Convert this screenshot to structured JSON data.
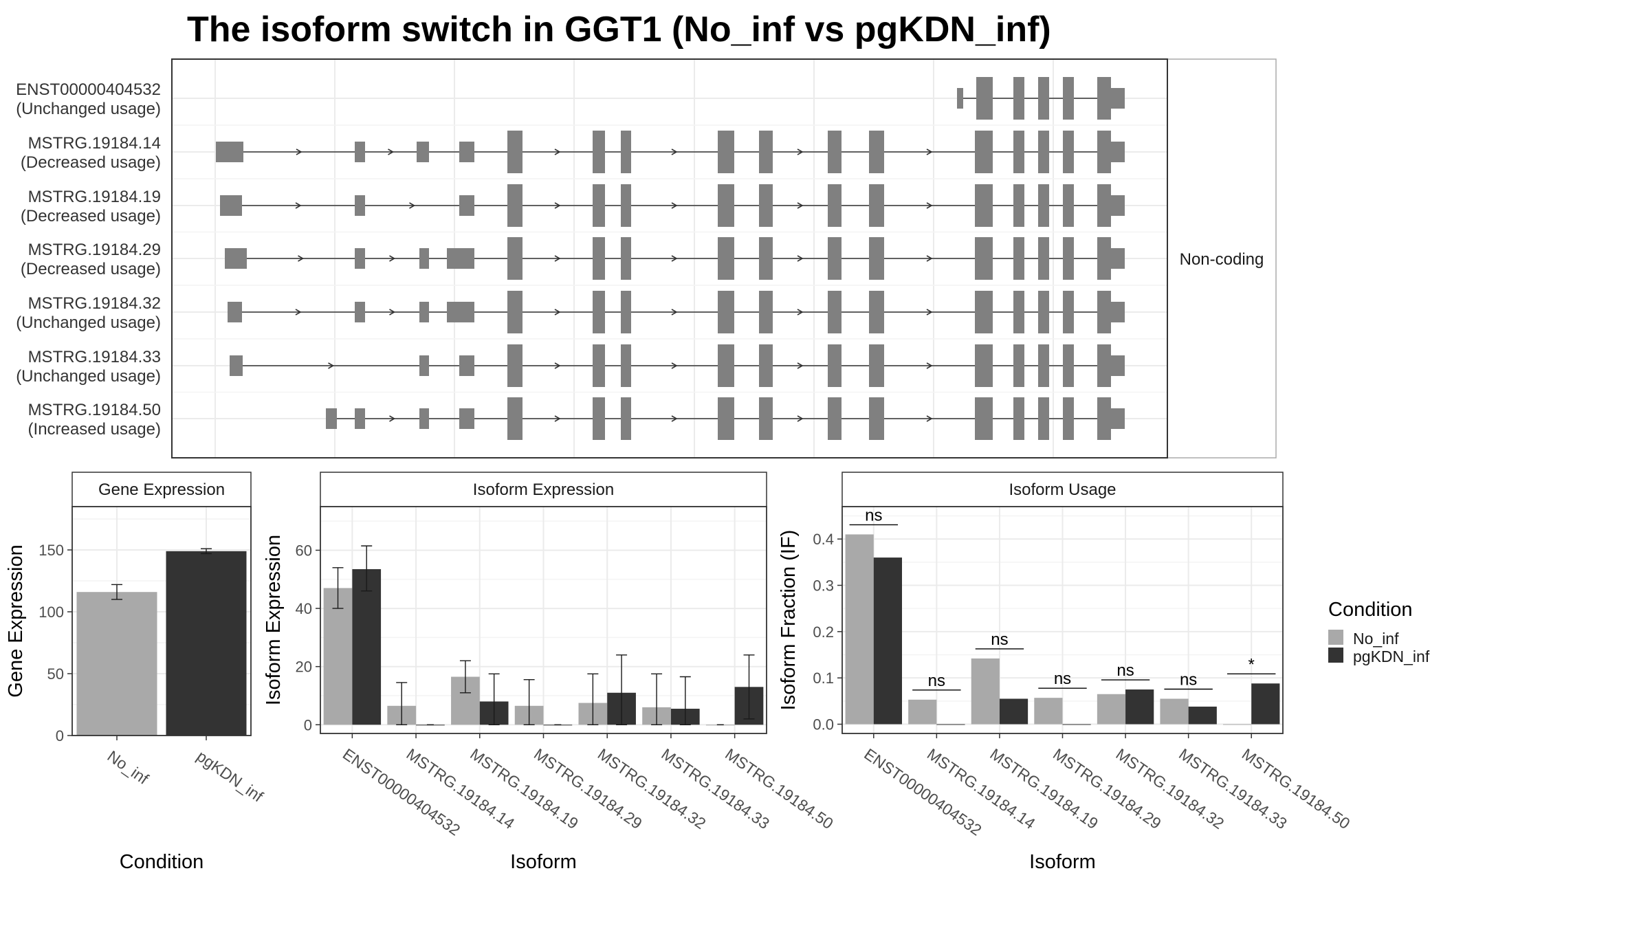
{
  "title": "The isoform switch in GGT1 (No_inf vs pgKDN_inf)",
  "colors": {
    "no_inf": "#a9a9a9",
    "pgkdn_inf": "#333333",
    "exon": "#808080"
  },
  "legend": {
    "title": "Condition",
    "items": [
      {
        "label": "No_inf",
        "color": "#a9a9a9"
      },
      {
        "label": "pgKDN_inf",
        "color": "#333333"
      }
    ]
  },
  "transcript_panel": {
    "strip_label": "Non-coding",
    "tracks": [
      {
        "name": "ENST00000404532",
        "usage": "(Unchanged usage)"
      },
      {
        "name": "MSTRG.19184.14",
        "usage": "(Decreased usage)"
      },
      {
        "name": "MSTRG.19184.19",
        "usage": "(Decreased usage)"
      },
      {
        "name": "MSTRG.19184.29",
        "usage": "(Decreased usage)"
      },
      {
        "name": "MSTRG.19184.32",
        "usage": "(Unchanged usage)"
      },
      {
        "name": "MSTRG.19184.33",
        "usage": "(Unchanged usage)"
      },
      {
        "name": "MSTRG.19184.50",
        "usage": "(Increased usage)"
      }
    ]
  },
  "chart_data": [
    {
      "type": "bar",
      "title": "Gene Expression",
      "xlabel": "Condition",
      "ylabel": "Gene Expression",
      "ylim": [
        0,
        185
      ],
      "yticks": [
        0,
        50,
        100,
        150
      ],
      "categories": [
        "No_inf",
        "pgKDN_inf"
      ],
      "values": [
        116,
        149
      ],
      "errors": [
        [
          110,
          122
        ],
        [
          147,
          151
        ]
      ],
      "colors": [
        "#a9a9a9",
        "#333333"
      ]
    },
    {
      "type": "bar",
      "title": "Isoform Expression",
      "xlabel": "Isoform",
      "ylabel": "Isoform Expression",
      "ylim": [
        -3,
        75
      ],
      "yticks": [
        0,
        20,
        40,
        60
      ],
      "categories": [
        "ENST00000404532",
        "MSTRG.19184.14",
        "MSTRG.19184.19",
        "MSTRG.19184.29",
        "MSTRG.19184.32",
        "MSTRG.19184.33",
        "MSTRG.19184.50"
      ],
      "series": [
        {
          "name": "No_inf",
          "values": [
            47,
            6.5,
            16.5,
            6.5,
            7.5,
            6,
            0
          ],
          "errors": [
            [
              40,
              54
            ],
            [
              0,
              14.5
            ],
            [
              11,
              22
            ],
            [
              0,
              15.5
            ],
            [
              0,
              17.5
            ],
            [
              0,
              17.5
            ],
            [
              0,
              0
            ]
          ]
        },
        {
          "name": "pgKDN_inf",
          "values": [
            53.5,
            0,
            8,
            0,
            11,
            5.5,
            13
          ],
          "errors": [
            [
              46,
              61.5
            ],
            [
              0,
              0
            ],
            [
              0,
              17.5
            ],
            [
              0,
              0
            ],
            [
              0,
              24
            ],
            [
              0,
              16.5
            ],
            [
              2,
              24
            ]
          ]
        }
      ]
    },
    {
      "type": "bar",
      "title": "Isoform Usage",
      "xlabel": "Isoform",
      "ylabel": "Isoform Fraction (IF)",
      "ylim": [
        -0.02,
        0.47
      ],
      "yticks": [
        0.0,
        0.1,
        0.2,
        0.3,
        0.4
      ],
      "ytick_labels": [
        "0.0",
        "0.1",
        "0.2",
        "0.3",
        "0.4"
      ],
      "categories": [
        "ENST00000404532",
        "MSTRG.19184.14",
        "MSTRG.19184.19",
        "MSTRG.19184.29",
        "MSTRG.19184.32",
        "MSTRG.19184.33",
        "MSTRG.19184.50"
      ],
      "series": [
        {
          "name": "No_inf",
          "values": [
            0.41,
            0.053,
            0.142,
            0.057,
            0.065,
            0.055,
            0
          ]
        },
        {
          "name": "pgKDN_inf",
          "values": [
            0.36,
            0,
            0.055,
            0,
            0.075,
            0.038,
            0.088
          ]
        }
      ],
      "significance": [
        "ns",
        "ns",
        "ns",
        "ns",
        "ns",
        "ns",
        "*"
      ]
    }
  ]
}
